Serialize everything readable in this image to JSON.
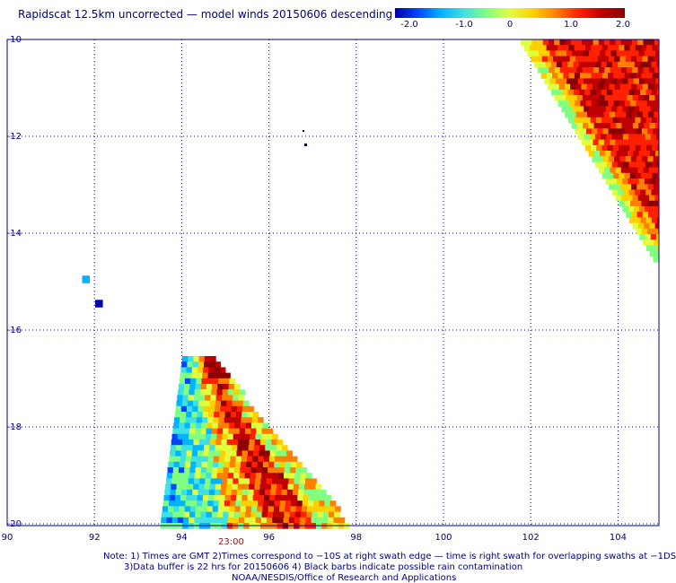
{
  "title": "Rapidscat 12.5km uncorrected — model winds 20150606 descending",
  "colorbar": {
    "ticks": [
      "-2.0",
      "-1.0",
      "0",
      "1.0",
      "2.0"
    ],
    "colors": [
      "#0000aa",
      "#0044ff",
      "#00b4ff",
      "#40e0e0",
      "#80ff80",
      "#e0ff40",
      "#ffd000",
      "#ff8000",
      "#ff2000",
      "#c00000",
      "#8b0000"
    ]
  },
  "axes": {
    "x_ticks": [
      "90",
      "92",
      "94",
      "96",
      "98",
      "100",
      "102",
      "104"
    ],
    "y_ticks": [
      "-10",
      "-12",
      "-14",
      "-16",
      "-18",
      "-20"
    ],
    "xlim": [
      90,
      105.3
    ],
    "ylim": [
      -20,
      -9.85
    ],
    "grid": "dotted"
  },
  "time_label": "23:00",
  "notes": [
    "Note: 1) Times are GMT 2)Times correspond to −10S at right swath edge — time is right swath for overlapping swaths at −1DS",
    "3)Data buffer is 22 hrs for 20150606 4) Black barbs indicate possible rain contamination",
    "NOAA/NESDIS/Office of Research and Applications"
  ],
  "swaths": [
    {
      "name": "swath-northeast",
      "region": "top-right corner, lon 101.8–105.3, lat -10.1 to -14.6",
      "dominant_values": "0.5 to 2.0"
    },
    {
      "name": "swath-southwest",
      "region": "lon 93.5–97.6, lat -16.6 to -20",
      "dominant_values": "-2.0 to 2.0"
    }
  ],
  "isolated_cells": [
    {
      "lon": 91.8,
      "lat": -14.95,
      "value": -1.2
    },
    {
      "lon": 92.1,
      "lat": -15.45,
      "value": -2.0
    }
  ]
}
